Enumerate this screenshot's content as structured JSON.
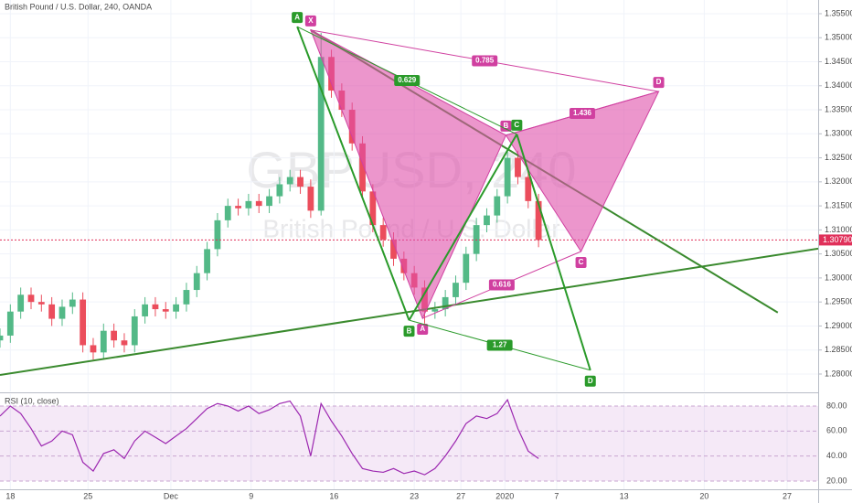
{
  "header": "British Pound / U.S. Dollar, 240, OANDA",
  "watermark": {
    "symbol": "GBPUSD, 240",
    "name": "British Pound / U.S. Dollar"
  },
  "chart_data": [
    {
      "type": "candlestick",
      "x": [
        0,
        2,
        4,
        6,
        8,
        10,
        12,
        14,
        16,
        18,
        20,
        22,
        24,
        26,
        28,
        30,
        32,
        34,
        36,
        38,
        40,
        42,
        44,
        46,
        48,
        50,
        52,
        54,
        56,
        58,
        60,
        62,
        64,
        66,
        68,
        70,
        72,
        74,
        76,
        78,
        80,
        82,
        84,
        86,
        88,
        90,
        92,
        94,
        96,
        98,
        100,
        102,
        104
      ],
      "open": [
        1.287,
        1.288,
        1.293,
        1.2965,
        1.295,
        1.2945,
        1.2915,
        1.294,
        1.2955,
        1.286,
        1.2845,
        1.289,
        1.287,
        1.286,
        1.292,
        1.2945,
        1.2935,
        1.293,
        1.2945,
        1.2975,
        1.301,
        1.306,
        1.312,
        1.315,
        1.3145,
        1.316,
        1.315,
        1.317,
        1.3195,
        1.321,
        1.319,
        1.314,
        1.346,
        1.339,
        1.335,
        1.328,
        1.318,
        1.311,
        1.308,
        1.304,
        1.301,
        1.298,
        1.293,
        1.2935,
        1.296,
        1.299,
        1.305,
        1.311,
        1.313,
        1.317,
        1.325,
        1.321,
        1.316
      ],
      "high": [
        1.2895,
        1.2945,
        1.298,
        1.298,
        1.2965,
        1.296,
        1.2955,
        1.297,
        1.297,
        1.2875,
        1.2905,
        1.2905,
        1.2885,
        1.2935,
        1.296,
        1.296,
        1.295,
        1.296,
        1.299,
        1.3025,
        1.3075,
        1.3135,
        1.3165,
        1.3165,
        1.3175,
        1.3175,
        1.3185,
        1.321,
        1.3225,
        1.3225,
        1.3205,
        1.351,
        1.3475,
        1.3405,
        1.3365,
        1.3295,
        1.3195,
        1.3125,
        1.3095,
        1.3055,
        1.3025,
        1.2995,
        1.295,
        1.2975,
        1.3005,
        1.3065,
        1.3125,
        1.3145,
        1.3185,
        1.327,
        1.3265,
        1.3225,
        1.3175
      ],
      "low": [
        1.2855,
        1.2865,
        1.2915,
        1.2935,
        1.293,
        1.29,
        1.29,
        1.2925,
        1.2845,
        1.283,
        1.283,
        1.2855,
        1.2845,
        1.2845,
        1.2905,
        1.292,
        1.2915,
        1.2915,
        1.293,
        1.296,
        1.2995,
        1.3045,
        1.3105,
        1.313,
        1.313,
        1.3135,
        1.3135,
        1.3155,
        1.318,
        1.3175,
        1.3125,
        1.313,
        1.3375,
        1.3335,
        1.3265,
        1.3165,
        1.3095,
        1.3065,
        1.3025,
        1.2995,
        1.2965,
        1.2905,
        1.2915,
        1.292,
        1.2945,
        1.2975,
        1.3035,
        1.3095,
        1.3115,
        1.3155,
        1.3195,
        1.3145,
        1.3064
      ],
      "close": [
        1.288,
        1.293,
        1.2965,
        1.295,
        1.2945,
        1.2915,
        1.294,
        1.2955,
        1.286,
        1.2845,
        1.289,
        1.287,
        1.286,
        1.292,
        1.2945,
        1.2935,
        1.293,
        1.2945,
        1.2975,
        1.301,
        1.306,
        1.312,
        1.315,
        1.3145,
        1.316,
        1.315,
        1.317,
        1.3195,
        1.321,
        1.319,
        1.314,
        1.346,
        1.339,
        1.335,
        1.328,
        1.318,
        1.311,
        1.308,
        1.304,
        1.301,
        1.298,
        1.293,
        1.2935,
        1.296,
        1.299,
        1.305,
        1.311,
        1.313,
        1.317,
        1.325,
        1.321,
        1.316,
        1.3079
      ],
      "up_color": "#53b987",
      "down_color": "#eb4d5c",
      "xlim": [
        0,
        158
      ],
      "xticks": [
        {
          "value": 2,
          "label": "18"
        },
        {
          "value": 17,
          "label": "25"
        },
        {
          "value": 33,
          "label": "Dec"
        },
        {
          "value": 48.5,
          "label": "9"
        },
        {
          "value": 64.5,
          "label": "16"
        },
        {
          "value": 80,
          "label": "23"
        },
        {
          "value": 89,
          "label": "27"
        },
        {
          "value": 97.5,
          "label": "2020"
        },
        {
          "value": 107.5,
          "label": "7"
        },
        {
          "value": 120.5,
          "label": "13"
        },
        {
          "value": 136,
          "label": "20"
        },
        {
          "value": 152,
          "label": "27"
        }
      ],
      "ylim": [
        1.27638,
        1.35785
      ],
      "yticks": [
        {
          "value": 1.28,
          "label": "1.28000"
        },
        {
          "value": 1.285,
          "label": "1.28500"
        },
        {
          "value": 1.29,
          "label": "1.29000"
        },
        {
          "value": 1.295,
          "label": "1.29500"
        },
        {
          "value": 1.3,
          "label": "1.30000"
        },
        {
          "value": 1.305,
          "label": "1.30500"
        },
        {
          "value": 1.31,
          "label": "1.31000"
        },
        {
          "value": 1.315,
          "label": "1.31500"
        },
        {
          "value": 1.32,
          "label": "1.32000"
        },
        {
          "value": 1.325,
          "label": "1.32500"
        },
        {
          "value": 1.33,
          "label": "1.33000"
        },
        {
          "value": 1.335,
          "label": "1.33500"
        },
        {
          "value": 1.34,
          "label": "1.34000"
        },
        {
          "value": 1.345,
          "label": "1.34500"
        },
        {
          "value": 1.35,
          "label": "1.35000"
        },
        {
          "value": 1.355,
          "label": "1.35500"
        }
      ],
      "grid": true,
      "last_price": {
        "value": 1.3079,
        "label": "1.30790",
        "color": "#e0305a"
      },
      "trendlines": [
        {
          "color": "#3a8a2e",
          "points": [
            [
              0,
              1.2798
            ],
            [
              158,
              1.3061
            ]
          ]
        },
        {
          "color": "#3a8a2e",
          "points": [
            [
              60,
              1.3516
            ],
            [
              150.2,
              1.2928
            ]
          ]
        }
      ],
      "patterns": [
        {
          "color": "#d040a0",
          "fill": "rgba(224,80,170,0.6)",
          "points": [
            {
              "label": "X",
              "x": 60,
              "y": 1.3516
            },
            {
              "label": "A",
              "x": 81.6,
              "y": 1.2916
            },
            {
              "label": "B",
              "x": 97.7,
              "y": 1.3297
            },
            {
              "label": "C",
              "x": 112.2,
              "y": 1.3055
            },
            {
              "label": "D",
              "x": 127.2,
              "y": 1.3388
            }
          ],
          "ratios": [
            {
              "text": "0.785",
              "from": 0,
              "to": 4
            },
            {
              "text": "1.436",
              "from": 2,
              "to": 4
            },
            {
              "text": "0.616",
              "from": 1,
              "to": 3
            }
          ]
        },
        {
          "color": "#2a9a2a",
          "fill": "none",
          "points": [
            {
              "label": "A",
              "x": 57.4,
              "y": 1.3523
            },
            {
              "label": "B",
              "x": 79,
              "y": 1.2912
            },
            {
              "label": "C",
              "x": 99.8,
              "y": 1.3299
            },
            {
              "label": "D",
              "x": 114,
              "y": 1.2808
            }
          ],
          "ratios": [
            {
              "text": "0.629",
              "from": 0,
              "to": 2
            },
            {
              "text": "1.27",
              "from": 1,
              "to": 3
            }
          ]
        }
      ]
    },
    {
      "type": "line",
      "title": "RSI (10, close)",
      "color": "#9c27b0",
      "x": [
        0,
        2,
        4,
        6,
        8,
        10,
        12,
        14,
        16,
        18,
        20,
        22,
        24,
        26,
        28,
        30,
        32,
        34,
        36,
        38,
        40,
        42,
        44,
        46,
        48,
        50,
        52,
        54,
        56,
        58,
        60,
        62,
        64,
        66,
        68,
        70,
        72,
        74,
        76,
        78,
        80,
        82,
        84,
        86,
        88,
        90,
        92,
        94,
        96,
        98,
        100,
        102,
        104
      ],
      "values": [
        72,
        80,
        74,
        62,
        48,
        52,
        60,
        57,
        35,
        28,
        42,
        45,
        38,
        52,
        60,
        55,
        50,
        56,
        62,
        70,
        78,
        82,
        80,
        76,
        80,
        74,
        77,
        82,
        84,
        72,
        40,
        82,
        68,
        56,
        42,
        30,
        28,
        27,
        30,
        26,
        28,
        25,
        30,
        40,
        52,
        66,
        72,
        70,
        74,
        85,
        62,
        44,
        38
      ],
      "ylim": [
        13.4,
        89.5
      ],
      "yticks": [
        {
          "value": 20,
          "label": "20.00"
        },
        {
          "value": 40,
          "label": "40.00"
        },
        {
          "value": 60,
          "label": "60.00"
        },
        {
          "value": 80,
          "label": "80.00"
        }
      ],
      "band": [
        20,
        80
      ],
      "band_color": "rgba(156,39,176,0.1)"
    }
  ]
}
